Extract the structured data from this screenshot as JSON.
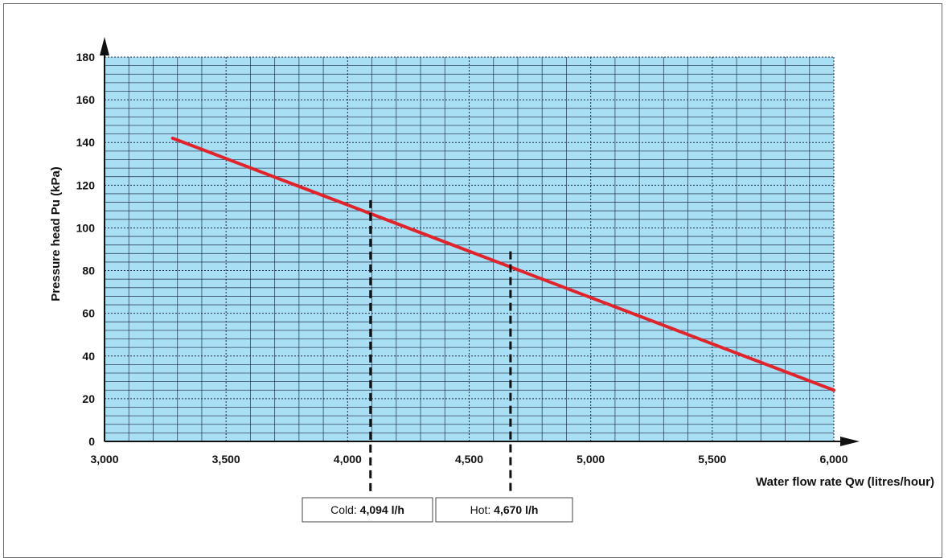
{
  "chart_data": {
    "type": "line",
    "xlabel": "Water flow rate Qw (litres/hour)",
    "ylabel": "Pressure head Pu (kPa)",
    "xlim": [
      3000,
      6000
    ],
    "ylim": [
      0,
      180
    ],
    "x_ticks": [
      3000,
      3500,
      4000,
      4500,
      5000,
      5500,
      6000
    ],
    "x_tick_labels": [
      "3,000",
      "3,500",
      "4,000",
      "4,500",
      "5,000",
      "5,500",
      "6,000"
    ],
    "y_ticks": [
      0,
      20,
      40,
      60,
      80,
      100,
      120,
      140,
      160,
      180
    ],
    "y_tick_labels": [
      "0",
      "20",
      "40",
      "60",
      "80",
      "100",
      "120",
      "140",
      "160",
      "180"
    ],
    "grid": true,
    "series": [
      {
        "x": [
          3280,
          6000
        ],
        "y": [
          142,
          24
        ],
        "color": "#e0242b"
      }
    ],
    "annotations": [
      {
        "x": 4094,
        "y": 113,
        "label_prefix": "Cold: ",
        "label_value": "4,094 l/h"
      },
      {
        "x": 4670,
        "y": 89,
        "label_prefix": "Hot: ",
        "label_value": "4,670 l/h"
      }
    ],
    "colors": {
      "plot_bg": "#a8dff5",
      "grid": "#1e2a44",
      "curve": "#e0242b",
      "axis": "#111111"
    }
  }
}
